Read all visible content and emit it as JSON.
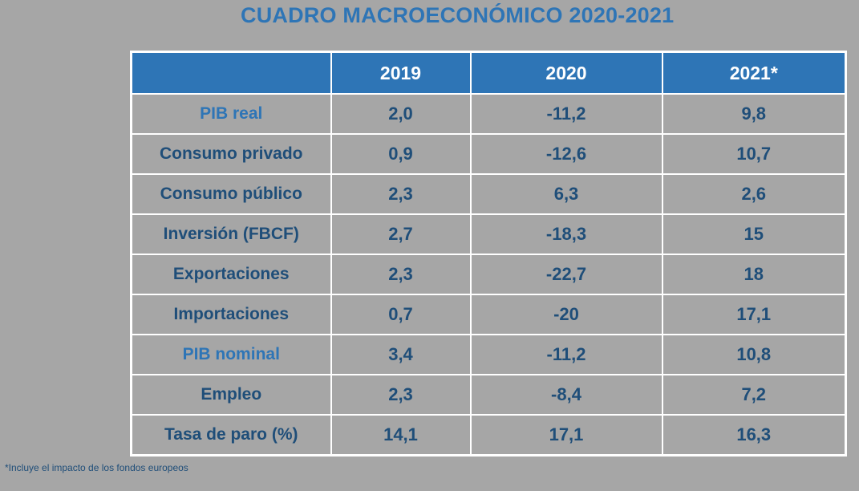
{
  "title": "CUADRO MACROECONÓMICO 2020-2021",
  "table": {
    "headers": [
      "",
      "2019",
      "2020",
      "2021*"
    ],
    "rows": [
      {
        "label": "PIB real",
        "highlight": true,
        "values": [
          "2,0",
          "-11,2",
          "9,8"
        ]
      },
      {
        "label": "Consumo privado",
        "highlight": false,
        "values": [
          "0,9",
          "-12,6",
          "10,7"
        ]
      },
      {
        "label": "Consumo público",
        "highlight": false,
        "values": [
          "2,3",
          "6,3",
          "2,6"
        ]
      },
      {
        "label": "Inversión (FBCF)",
        "highlight": false,
        "values": [
          "2,7",
          "-18,3",
          "15"
        ]
      },
      {
        "label": "Exportaciones",
        "highlight": false,
        "values": [
          "2,3",
          "-22,7",
          "18"
        ]
      },
      {
        "label": "Importaciones",
        "highlight": false,
        "values": [
          "0,7",
          "-20",
          "17,1"
        ]
      },
      {
        "label": "PIB nominal",
        "highlight": true,
        "values": [
          "3,4",
          "-11,2",
          "10,8"
        ]
      },
      {
        "label": "Empleo",
        "highlight": false,
        "values": [
          "2,3",
          "-8,4",
          "7,2"
        ]
      },
      {
        "label": "Tasa de paro (%)",
        "highlight": false,
        "values": [
          "14,1",
          "17,1",
          "16,3"
        ]
      }
    ]
  },
  "footnote": "*Incluye el impacto de los fondos europeos",
  "colors": {
    "background": "#a6a6a6",
    "header_fill": "#2e75b6",
    "title": "#2e75b6",
    "text_dark": "#1f4e79",
    "grid": "#ffffff"
  }
}
